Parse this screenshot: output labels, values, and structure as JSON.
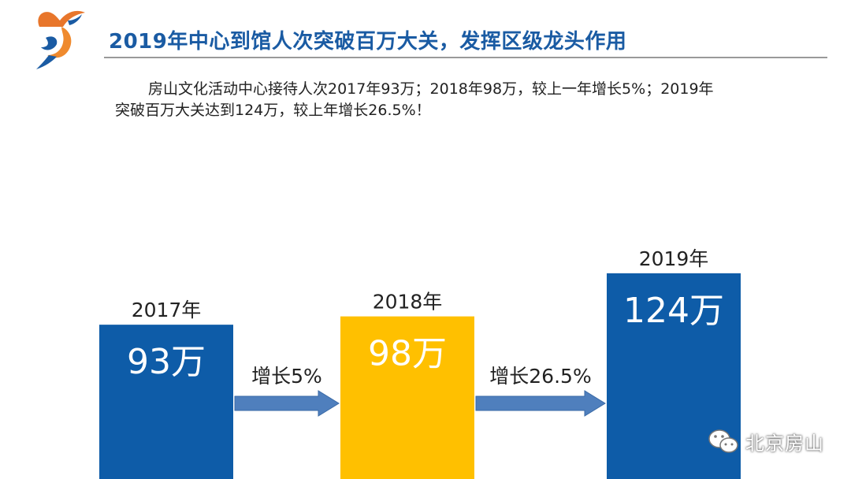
{
  "slide": {
    "title": "2019年中心到馆人次突破百万大关，发挥区级龙头作用",
    "description": "房山文化活动中心接待人次2017年93万；2018年98万，较上一年增长5%；2019年突破百万大关达到124万，较上年增长26.5%！"
  },
  "chart_data": {
    "type": "bar",
    "unit": "万",
    "categories": [
      "2017年",
      "2018年",
      "2019年"
    ],
    "values": [
      93,
      98,
      124
    ],
    "value_labels": [
      "93万",
      "98万",
      "124万"
    ],
    "bar_colors": [
      "#0e5ca8",
      "#ffc000",
      "#0e5ca8"
    ],
    "growth_arrows": [
      {
        "from": "2017年",
        "to": "2018年",
        "label": "增长5%"
      },
      {
        "from": "2018年",
        "to": "2019年",
        "label": "增长26.5%"
      }
    ],
    "arrow_color": "#4f7fbd"
  },
  "watermark": {
    "text": "北京房山",
    "icon": "wechat-icon"
  }
}
